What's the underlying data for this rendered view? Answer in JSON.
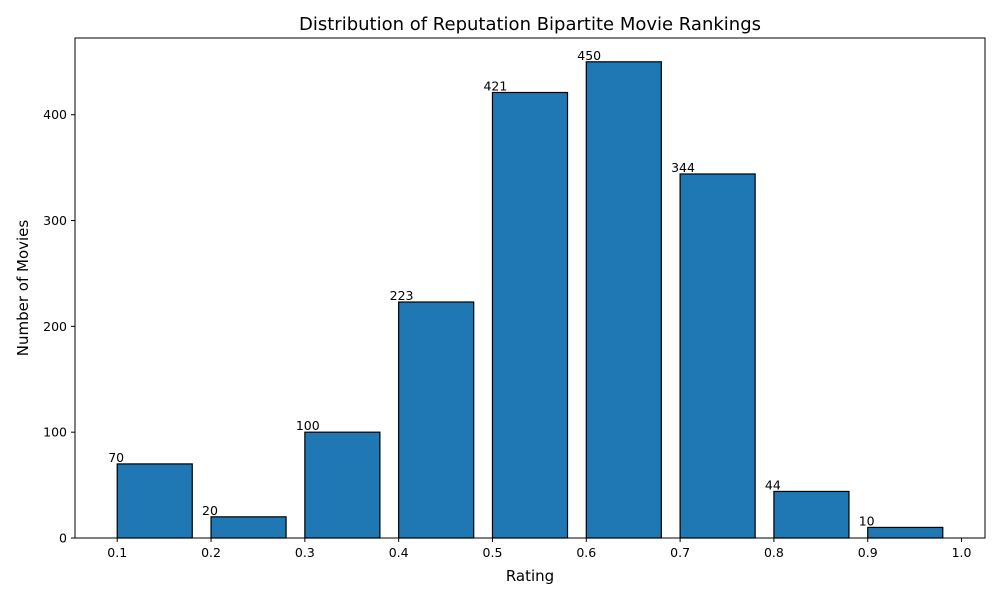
{
  "chart_data": {
    "type": "bar",
    "title": "Distribution of Reputation Bipartite Movie Rankings",
    "xlabel": "Rating",
    "ylabel": "Number of Movies",
    "bin_edges": [
      0.1,
      0.2,
      0.3,
      0.4,
      0.5,
      0.6,
      0.7,
      0.8,
      0.9,
      1.0
    ],
    "values": [
      70,
      20,
      100,
      223,
      421,
      450,
      344,
      44,
      10
    ],
    "data_labels": [
      "70",
      "20",
      "100",
      "223",
      "421",
      "450",
      "344",
      "44",
      "10"
    ],
    "xlim": [
      0.055,
      1.025
    ],
    "ylim": [
      0,
      472.5
    ],
    "xticks": [
      "0.1",
      "0.2",
      "0.3",
      "0.4",
      "0.5",
      "0.6",
      "0.7",
      "0.8",
      "0.9",
      "1.0"
    ],
    "yticks": [
      "0",
      "100",
      "200",
      "300",
      "400"
    ],
    "bar_color": "#1f77b4",
    "edge_color": "#000000",
    "grid": false,
    "legend": "none"
  }
}
